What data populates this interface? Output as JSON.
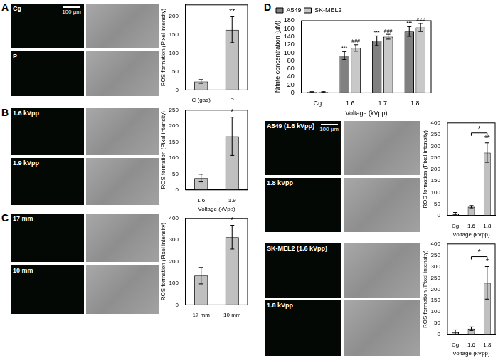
{
  "panel_labels": [
    "A",
    "B",
    "C",
    "D"
  ],
  "micrographs": [
    {
      "label": "Cg",
      "scale_bar": "100 µm"
    },
    {
      "label": "P"
    },
    {
      "label": "1.6 kVpp"
    },
    {
      "label": "1.9 kVpp"
    },
    {
      "label": "17 mm"
    },
    {
      "label": "10 mm"
    },
    {
      "label": "A549 (1.6 kVpp)",
      "scale_bar": "100 µm"
    },
    {
      "label": "1.8 kVpp"
    },
    {
      "label": "SK-MEL2 (1.6 kVpp)"
    },
    {
      "label": "1.8 kVpp"
    }
  ],
  "chart_data": [
    {
      "type": "bar",
      "y_label": "ROS formation (Pixel intensity)",
      "categories": [
        "C (gas)",
        "P"
      ],
      "values": [
        23,
        163
      ],
      "errors": [
        5,
        35
      ],
      "significance": [
        null,
        "**"
      ],
      "color": "#c0c0c0",
      "ylim": [
        0,
        230
      ],
      "yticks": [
        0,
        50,
        100,
        150,
        200
      ],
      "grid": false
    },
    {
      "type": "bar",
      "y_label": "ROS formation (Pixel intensity)",
      "x_label": "Voltage (kVpp)",
      "categories": [
        "1.6",
        "1.9"
      ],
      "values": [
        37,
        168
      ],
      "errors": [
        12,
        60
      ],
      "significance": [
        null,
        "*"
      ],
      "color": "#c0c0c0",
      "ylim": [
        0,
        250
      ],
      "yticks": [
        0,
        50,
        100,
        150,
        200,
        250
      ],
      "grid": false
    },
    {
      "type": "bar",
      "y_label": "ROS formation (Pixel intensity)",
      "categories": [
        "17 mm",
        "10 mm"
      ],
      "values": [
        135,
        313
      ],
      "errors": [
        38,
        55
      ],
      "significance": [
        null,
        "*"
      ],
      "color": "#c0c0c0",
      "ylim": [
        0,
        400
      ],
      "yticks": [
        0,
        100,
        200,
        300,
        400
      ],
      "grid": false
    },
    {
      "type": "bar",
      "y_label": "Nitrite concentration (µM)",
      "x_label": "Voltage (kVpp)",
      "categories": [
        "Cg",
        "1.6",
        "1.7",
        "1.8"
      ],
      "series": [
        {
          "name": "A549",
          "color": "#808080",
          "values": [
            2,
            93,
            130,
            153
          ],
          "errors": [
            1,
            10,
            12,
            12
          ],
          "significance": [
            null,
            "***",
            "***",
            "***"
          ]
        },
        {
          "name": "SK-MEL2",
          "color": "#c8c8c8",
          "values": [
            2,
            112,
            140,
            163
          ],
          "errors": [
            1,
            8,
            6,
            10
          ],
          "significance": [
            null,
            "###",
            "###",
            "###"
          ]
        }
      ],
      "legend": "upper left",
      "ylim": [
        0,
        180
      ],
      "yticks": [
        0,
        20,
        40,
        60,
        80,
        100,
        120,
        140,
        160,
        180
      ],
      "grid": false
    },
    {
      "type": "bar",
      "y_label": "ROS formation (Pixel intensity)",
      "x_label": "Voltage (kVpp)",
      "categories": [
        "Cg",
        "1.6",
        "1.8"
      ],
      "values": [
        8,
        38,
        272
      ],
      "errors": [
        5,
        5,
        42
      ],
      "significance": [
        null,
        null,
        "**"
      ],
      "annotations": [
        {
          "text": "*",
          "from": "1.6",
          "to": "1.8"
        }
      ],
      "color": "#c0c0c0",
      "ylim": [
        0,
        400
      ],
      "yticks": [
        0,
        50,
        100,
        150,
        200,
        250,
        300,
        350,
        400
      ],
      "grid": false
    },
    {
      "type": "bar",
      "y_label": "ROS formation (Pixel intensity)",
      "x_label": "Voltage (kVpp)",
      "categories": [
        "Cg",
        "1.6",
        "1.8"
      ],
      "values": [
        10,
        25,
        228
      ],
      "errors": [
        10,
        8,
        72
      ],
      "significance": [
        null,
        null,
        "*"
      ],
      "annotations": [
        {
          "text": "*",
          "from": "1.6",
          "to": "1.8"
        }
      ],
      "color": "#c0c0c0",
      "ylim": [
        0,
        400
      ],
      "yticks": [
        0,
        50,
        100,
        150,
        200,
        250,
        300,
        350,
        400
      ],
      "grid": false
    }
  ]
}
